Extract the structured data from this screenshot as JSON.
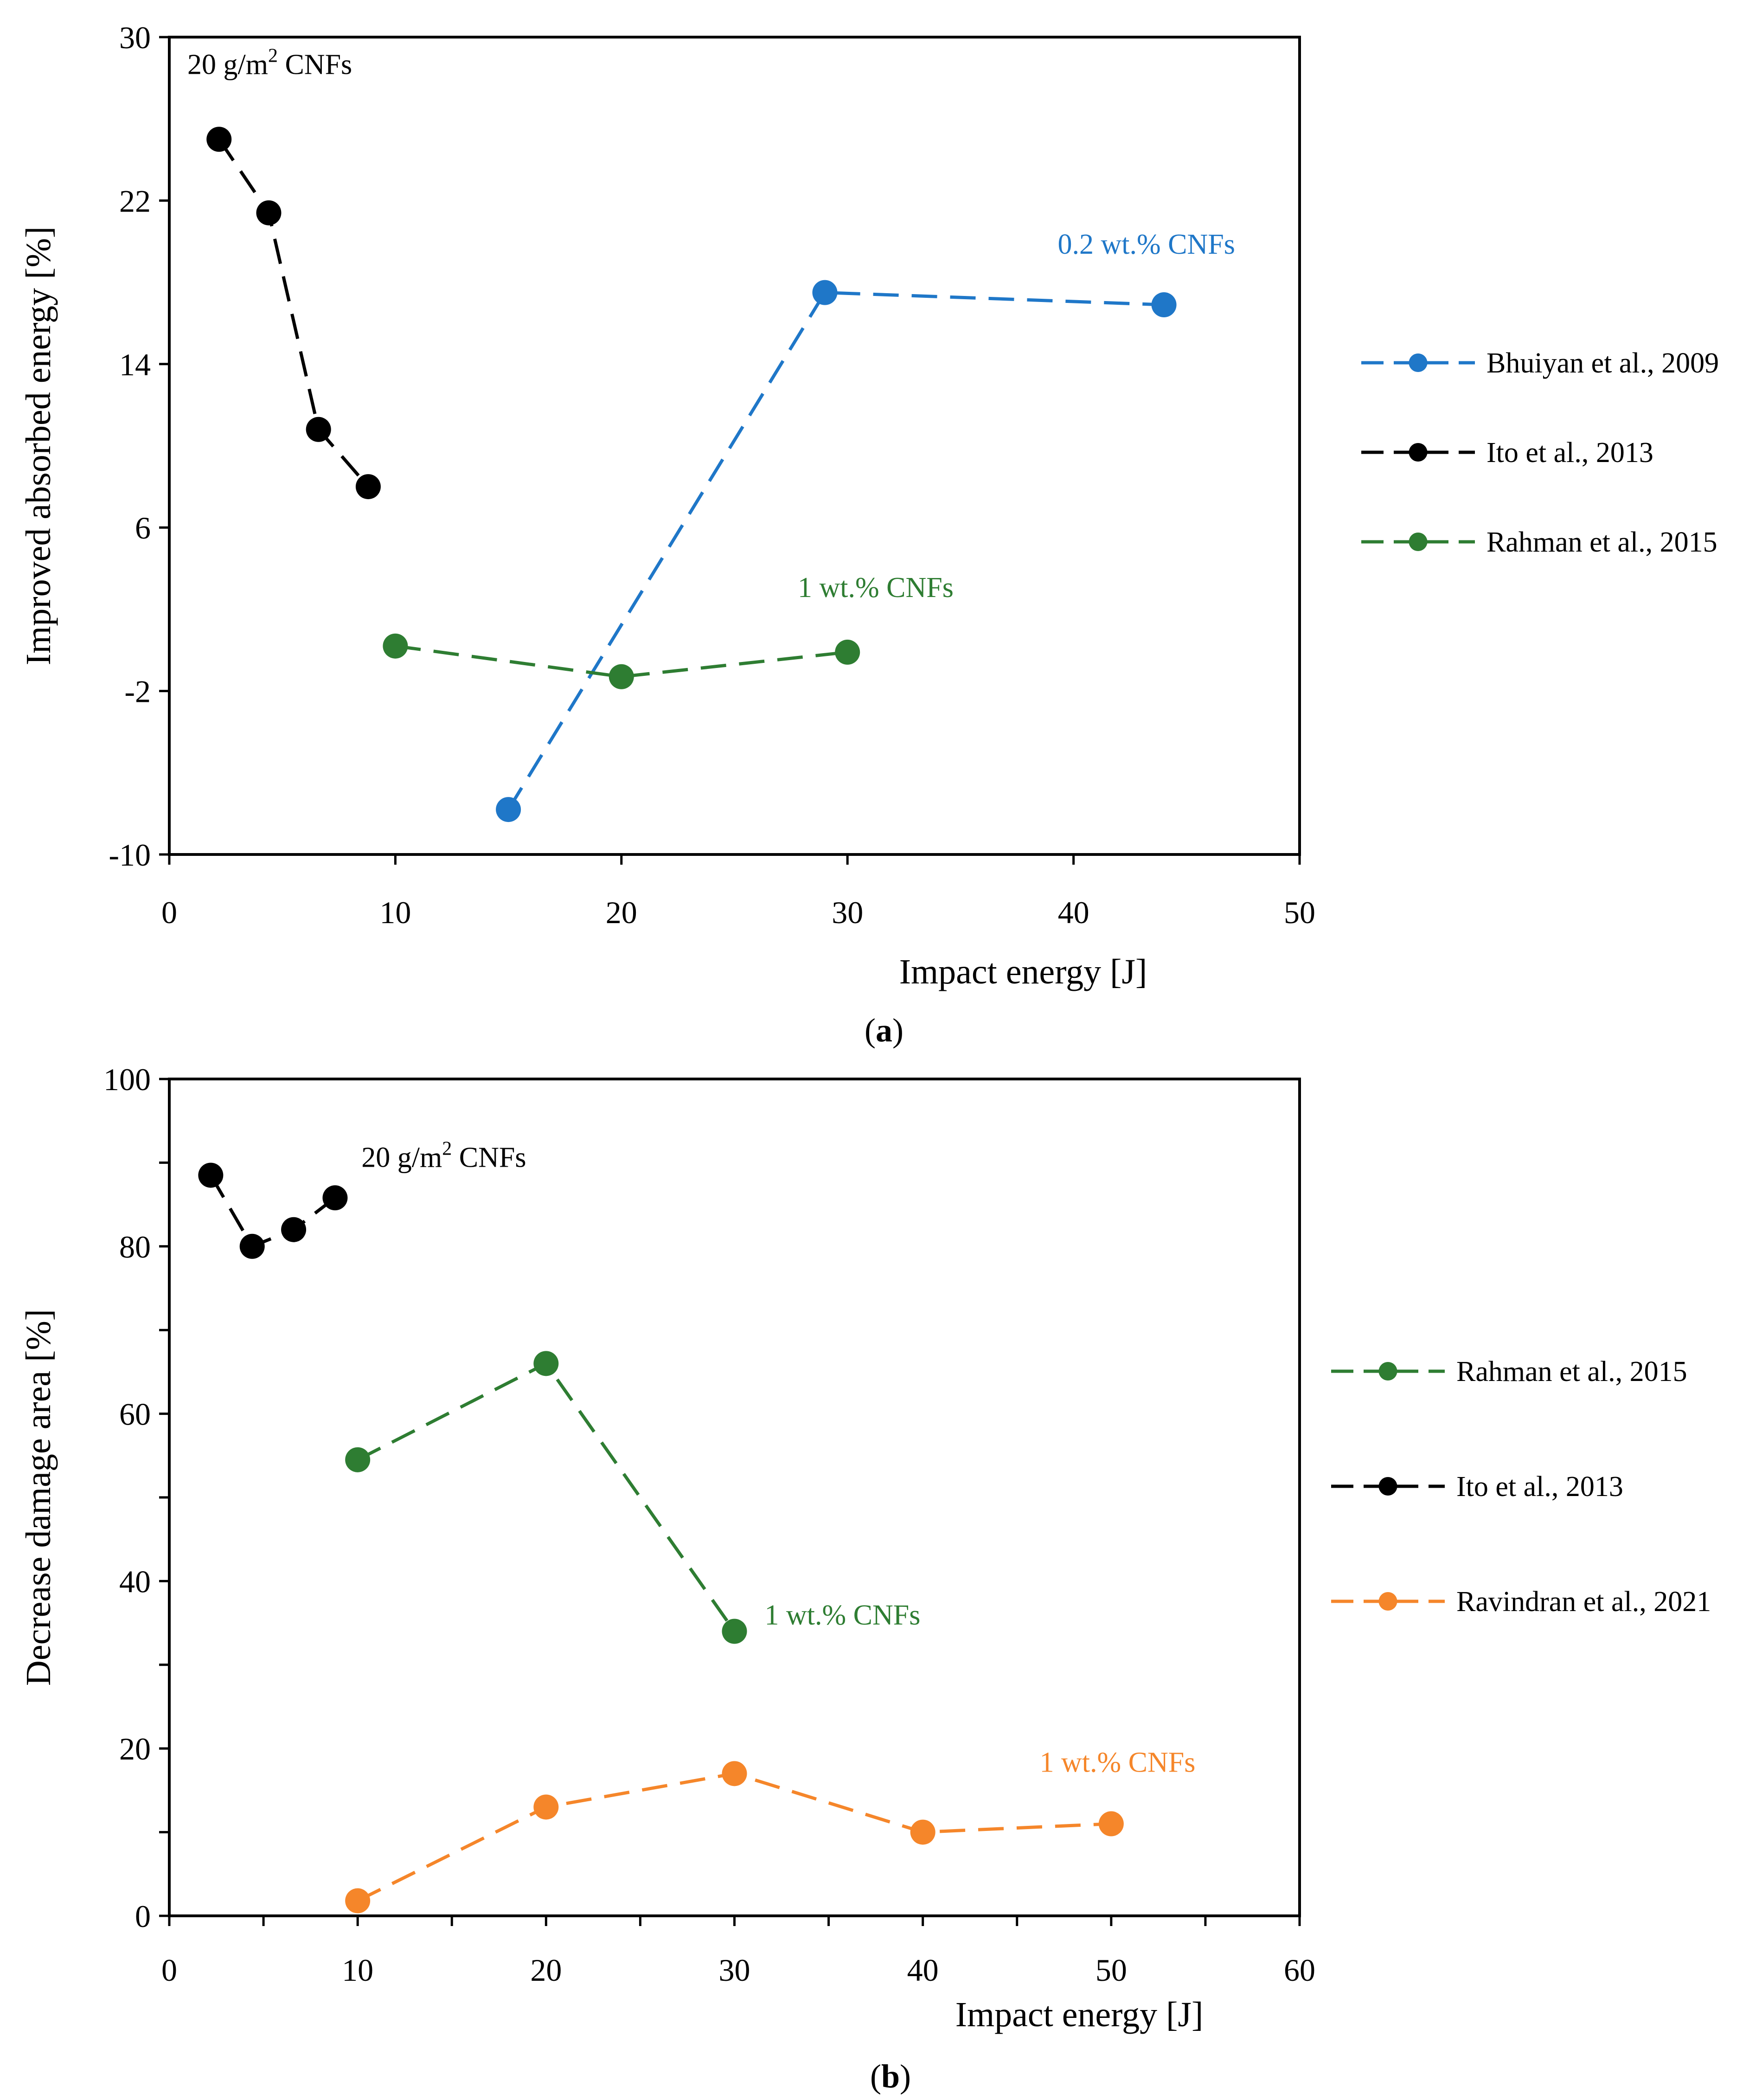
{
  "chart_data": [
    {
      "type": "line",
      "panel": "a",
      "caption": {
        "open": "(",
        "letter": "a",
        "close": ")"
      },
      "xlabel": "Impact energy [J]",
      "ylabel": "Improved absorbed energy [%]",
      "xlim": [
        0,
        50
      ],
      "ylim": [
        -10,
        30
      ],
      "xticks": [
        "0",
        "10",
        "20",
        "30",
        "40",
        "50"
      ],
      "xtick_values": [
        0,
        10,
        20,
        30,
        40,
        50
      ],
      "yticks": [
        "-10",
        "-2",
        "6",
        "14",
        "22",
        "30"
      ],
      "ytick_values": [
        -10,
        -2,
        6,
        14,
        22,
        30
      ],
      "grid": false,
      "legend_position": "right",
      "series": [
        {
          "name": "Bhuiyan et al., 2009",
          "color": "#1f77c8",
          "x": [
            15,
            29,
            44
          ],
          "y": [
            -7.8,
            17.5,
            16.9
          ]
        },
        {
          "name": "Ito et al., 2013",
          "color": "#000000",
          "x": [
            2.2,
            4.4,
            6.6,
            8.8
          ],
          "y": [
            25,
            21.4,
            10.8,
            8
          ]
        },
        {
          "name": "Rahman et al., 2015",
          "color": "#2e7d32",
          "x": [
            10,
            20,
            30
          ],
          "y": [
            0.2,
            -1.3,
            -0.1
          ]
        }
      ],
      "annotations": [
        {
          "text_main": "20 g/m",
          "text_sup": "2",
          "text_tail": " CNFs",
          "color": "#000000",
          "x": 0.8,
          "y": 28.2
        },
        {
          "text_main": "0.2 wt.% CNFs",
          "text_sup": "",
          "text_tail": "",
          "color": "#1f77c8",
          "x": 39.3,
          "y": 19.4
        },
        {
          "text_main": "1 wt.% CNFs",
          "text_sup": "",
          "text_tail": "",
          "color": "#2e7d32",
          "x": 27.8,
          "y": 2.6
        }
      ]
    },
    {
      "type": "line",
      "panel": "b",
      "caption": {
        "open": "(",
        "letter": "b",
        "close": ")"
      },
      "xlabel": "Impact energy [J]",
      "ylabel": "Decrease damage area [%]",
      "xlim": [
        0,
        60
      ],
      "ylim": [
        0,
        100
      ],
      "xticks": [
        "0",
        "10",
        "20",
        "30",
        "40",
        "50",
        "60"
      ],
      "xtick_values": [
        0,
        10,
        20,
        30,
        40,
        50,
        60
      ],
      "yticks": [
        "0",
        "20",
        "40",
        "60",
        "80",
        "100"
      ],
      "ytick_values": [
        0,
        20,
        40,
        60,
        80,
        100
      ],
      "grid": false,
      "legend_position": "right",
      "series": [
        {
          "name": "Rahman et al., 2015",
          "color": "#2e7d32",
          "x": [
            10,
            20,
            30
          ],
          "y": [
            54.5,
            66,
            34
          ]
        },
        {
          "name": "Ito et al., 2013",
          "color": "#000000",
          "x": [
            2.2,
            4.4,
            6.6,
            8.8
          ],
          "y": [
            88.5,
            80,
            82,
            85.8
          ]
        },
        {
          "name": "Ravindran et al., 2021",
          "color": "#f5862a",
          "x": [
            10,
            20,
            30,
            40,
            50
          ],
          "y": [
            1.8,
            13,
            17,
            10,
            11
          ]
        }
      ],
      "annotations": [
        {
          "text_main": "20 g/m",
          "text_sup": "2",
          "text_tail": " CNFs",
          "color": "#000000",
          "x": 10.2,
          "y": 89.5
        },
        {
          "text_main": "1 wt.% CNFs",
          "text_sup": "",
          "text_tail": "",
          "color": "#2e7d32",
          "x": 31.6,
          "y": 34.8
        },
        {
          "text_main": "1 wt.% CNFs",
          "text_sup": "",
          "text_tail": "",
          "color": "#f5862a",
          "x": 46.2,
          "y": 17.2
        }
      ]
    }
  ]
}
